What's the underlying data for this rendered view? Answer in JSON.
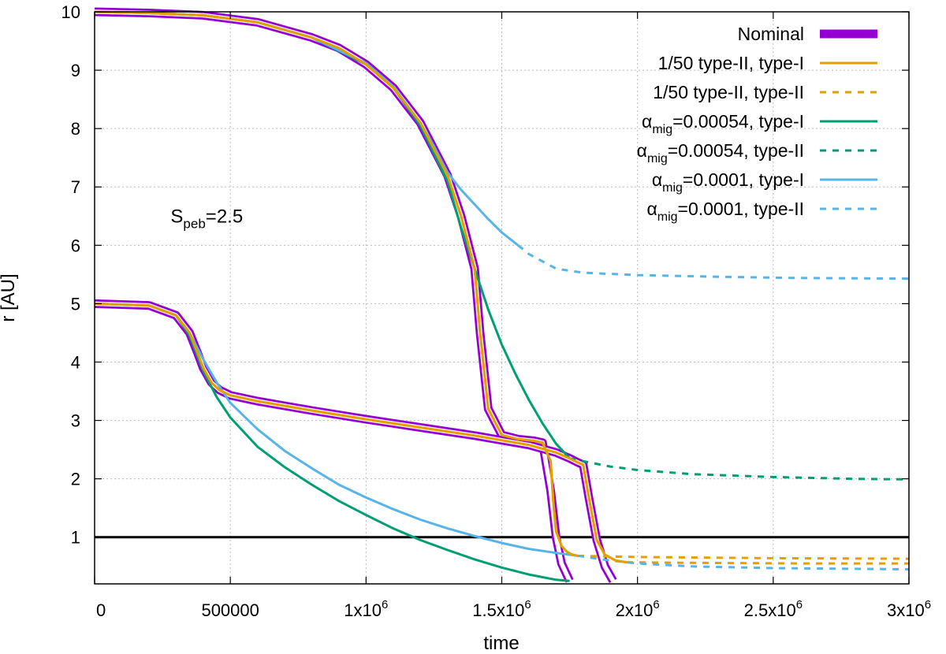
{
  "chart_data": {
    "type": "line",
    "xlabel": "time",
    "ylabel": "r [AU]",
    "xlim": [
      0,
      3000000
    ],
    "ylim": [
      0.2,
      10
    ],
    "grid": true,
    "legend_position": "top-right",
    "x_ticks": [
      {
        "value": 0,
        "label": "0"
      },
      {
        "value": 500000,
        "label": "500000"
      },
      {
        "value": 1000000,
        "label": "1x10",
        "exp": "6"
      },
      {
        "value": 1500000,
        "label": "1.5x10",
        "exp": "6"
      },
      {
        "value": 2000000,
        "label": "2x10",
        "exp": "6"
      },
      {
        "value": 2500000,
        "label": "2.5x10",
        "exp": "6"
      },
      {
        "value": 3000000,
        "label": "3x10",
        "exp": "6"
      }
    ],
    "y_ticks": [
      {
        "value": 1,
        "label": "1"
      },
      {
        "value": 2,
        "label": "2"
      },
      {
        "value": 3,
        "label": "3"
      },
      {
        "value": 4,
        "label": "4"
      },
      {
        "value": 5,
        "label": "5"
      },
      {
        "value": 6,
        "label": "6"
      },
      {
        "value": 7,
        "label": "7"
      },
      {
        "value": 8,
        "label": "8"
      },
      {
        "value": 9,
        "label": "9"
      },
      {
        "value": 10,
        "label": "10"
      }
    ],
    "annotation": {
      "base": "S",
      "sub": "peb",
      "rest": "=2.5",
      "x": 280000,
      "y": 6.5
    },
    "reference_line": {
      "name": "r = 1 AU",
      "y": 1,
      "color": "#000000"
    },
    "legend": [
      {
        "label": "Nominal",
        "color": "#9400d3",
        "style": "thick"
      },
      {
        "label": "1/50 type-II, type-I",
        "color": "#e69f00",
        "style": "solid"
      },
      {
        "label": "1/50 type-II, type-II",
        "color": "#e69f00",
        "style": "dashed"
      },
      {
        "label_base": "α",
        "label_sub": "mig",
        "label_rest": "=0.00054, type-I",
        "color": "#009e73",
        "style": "solid"
      },
      {
        "label_base": "α",
        "label_sub": "mig",
        "label_rest": "=0.00054, type-II",
        "color": "#009e73",
        "style": "dashed"
      },
      {
        "label_base": "α",
        "label_sub": "mig",
        "label_rest": "=0.0001, type-I",
        "color": "#56b4e9",
        "style": "solid"
      },
      {
        "label_base": "α",
        "label_sub": "mig",
        "label_rest": "=0.0001, type-II",
        "color": "#56b4e9",
        "style": "dashed"
      }
    ],
    "series": [
      {
        "name": "Nominal (r0=10 AU)",
        "color": "#9400d3",
        "style": "nominal",
        "x": [
          0,
          200000,
          400000,
          600000,
          800000,
          900000,
          1000000,
          1100000,
          1200000,
          1300000,
          1350000,
          1400000,
          1420000,
          1450000,
          1500000,
          1560000,
          1620000,
          1650000,
          1680000,
          1700000,
          1720000,
          1750000
        ],
        "y": [
          10,
          9.98,
          9.94,
          9.82,
          9.56,
          9.38,
          9.1,
          8.7,
          8.1,
          7.2,
          6.5,
          5.6,
          4.5,
          3.2,
          2.75,
          2.68,
          2.65,
          2.62,
          1.8,
          1,
          0.55,
          0.25
        ]
      },
      {
        "name": "Nominal (r0=5 AU)",
        "color": "#9400d3",
        "style": "nominal",
        "x": [
          0,
          200000,
          300000,
          350000,
          380000,
          400000,
          430000,
          460000,
          500000,
          600000,
          800000,
          1000000,
          1200000,
          1400000,
          1600000,
          1700000,
          1750000,
          1780000,
          1800000,
          1820000,
          1850000,
          1880000,
          1910000
        ],
        "y": [
          5,
          4.97,
          4.8,
          4.5,
          4.15,
          3.9,
          3.65,
          3.52,
          3.43,
          3.33,
          3.17,
          3.02,
          2.88,
          2.74,
          2.58,
          2.45,
          2.35,
          2.28,
          2.24,
          1.7,
          0.95,
          0.5,
          0.25
        ]
      },
      {
        "name": "1/50 type-II, type-I (r0=10 AU)",
        "color": "#e69f00",
        "style": "solid",
        "x": [
          0,
          200000,
          400000,
          600000,
          800000,
          900000,
          1000000,
          1100000,
          1200000,
          1300000,
          1350000,
          1400000,
          1420000,
          1450000,
          1500000,
          1560000,
          1620000,
          1650000,
          1680000,
          1690000,
          1700000,
          1720000,
          1740000,
          1760000,
          1780000
        ],
        "y": [
          10,
          9.98,
          9.94,
          9.82,
          9.56,
          9.38,
          9.1,
          8.7,
          8.1,
          7.2,
          6.5,
          5.6,
          4.5,
          3.2,
          2.75,
          2.68,
          2.65,
          2.62,
          2.3,
          1.6,
          1.1,
          0.85,
          0.75,
          0.7,
          0.68
        ]
      },
      {
        "name": "1/50 type-II, type-II (r0=10 AU)",
        "color": "#e69f00",
        "style": "dashed",
        "x": [
          1780000,
          2000000,
          2500000,
          3000000
        ],
        "y": [
          0.68,
          0.66,
          0.64,
          0.63
        ]
      },
      {
        "name": "1/50 type-II, type-I (r0=5 AU)",
        "color": "#e69f00",
        "style": "solid",
        "x": [
          0,
          200000,
          300000,
          350000,
          380000,
          400000,
          430000,
          460000,
          500000,
          600000,
          800000,
          1000000,
          1200000,
          1400000,
          1600000,
          1700000,
          1750000,
          1780000,
          1800000,
          1820000,
          1850000,
          1880000,
          1920000,
          1960000
        ],
        "y": [
          5,
          4.97,
          4.8,
          4.5,
          4.15,
          3.9,
          3.65,
          3.52,
          3.43,
          3.33,
          3.17,
          3.02,
          2.88,
          2.74,
          2.58,
          2.45,
          2.35,
          2.28,
          2.24,
          1.7,
          0.95,
          0.7,
          0.6,
          0.57
        ]
      },
      {
        "name": "1/50 type-II, type-II (r0=5 AU)",
        "color": "#e69f00",
        "style": "dashed",
        "x": [
          1960000,
          2200000,
          2600000,
          3000000
        ],
        "y": [
          0.57,
          0.56,
          0.55,
          0.55
        ]
      },
      {
        "name": "α_mig=0.00054, type-I (r0=10 AU)",
        "color": "#009e73",
        "style": "solid",
        "x": [
          0,
          200000,
          400000,
          600000,
          800000,
          1000000,
          1100000,
          1200000,
          1300000,
          1350000,
          1400000,
          1450000,
          1500000,
          1550000,
          1600000,
          1650000,
          1700000,
          1750000
        ],
        "y": [
          10,
          9.98,
          9.94,
          9.82,
          9.56,
          9.1,
          8.7,
          8.05,
          7.1,
          6.3,
          5.6,
          4.9,
          4.3,
          3.8,
          3.35,
          2.95,
          2.6,
          2.35
        ]
      },
      {
        "name": "α_mig=0.00054, type-II (r0=10 AU)",
        "color": "#009e73",
        "style": "dashed",
        "x": [
          1750000,
          1800000,
          1900000,
          2000000,
          2200000,
          2500000,
          2800000,
          3000000
        ],
        "y": [
          2.35,
          2.3,
          2.21,
          2.15,
          2.08,
          2.03,
          2.0,
          1.99
        ]
      },
      {
        "name": "α_mig=0.00054, type-I (r0=5 AU)",
        "color": "#009e73",
        "style": "solid",
        "x": [
          0,
          200000,
          300000,
          350000,
          400000,
          450000,
          500000,
          600000,
          700000,
          800000,
          900000,
          1000000,
          1100000,
          1200000,
          1300000,
          1400000,
          1500000,
          1600000,
          1700000,
          1750000
        ],
        "y": [
          5,
          4.97,
          4.8,
          4.45,
          3.85,
          3.4,
          3.05,
          2.55,
          2.2,
          1.9,
          1.62,
          1.38,
          1.15,
          0.95,
          0.78,
          0.62,
          0.48,
          0.36,
          0.27,
          0.25
        ]
      },
      {
        "name": "α_mig=0.0001, type-I (r0=10 AU)",
        "color": "#56b4e9",
        "style": "solid",
        "x": [
          0,
          200000,
          400000,
          600000,
          800000,
          1000000,
          1100000,
          1200000,
          1250000,
          1300000,
          1350000,
          1400000,
          1450000,
          1500000,
          1560000
        ],
        "y": [
          10,
          9.98,
          9.94,
          9.82,
          9.56,
          9.12,
          8.72,
          8.1,
          7.7,
          7.25,
          6.95,
          6.7,
          6.45,
          6.22,
          6.0
        ]
      },
      {
        "name": "α_mig=0.0001, type-II (r0=10 AU)",
        "color": "#56b4e9",
        "style": "dashed",
        "x": [
          1560000,
          1600000,
          1700000,
          1800000,
          2000000,
          2300000,
          2600000,
          3000000
        ],
        "y": [
          6.0,
          5.85,
          5.6,
          5.53,
          5.49,
          5.46,
          5.44,
          5.43
        ]
      },
      {
        "name": "α_mig=0.0001, type-I (r0=5 AU)",
        "color": "#56b4e9",
        "style": "solid",
        "x": [
          0,
          200000,
          300000,
          350000,
          400000,
          450000,
          500000,
          600000,
          700000,
          800000,
          900000,
          1000000,
          1100000,
          1200000,
          1300000,
          1400000,
          1500000,
          1600000,
          1700000,
          1780000
        ],
        "y": [
          5,
          4.97,
          4.8,
          4.5,
          4.05,
          3.65,
          3.3,
          2.85,
          2.48,
          2.18,
          1.9,
          1.68,
          1.48,
          1.3,
          1.15,
          1.02,
          0.9,
          0.8,
          0.73,
          0.68
        ]
      },
      {
        "name": "α_mig=0.0001, type-II (r0=5 AU)",
        "color": "#56b4e9",
        "style": "dashed",
        "x": [
          1780000,
          1900000,
          2000000,
          2200000,
          2500000,
          3000000
        ],
        "y": [
          0.68,
          0.6,
          0.55,
          0.5,
          0.47,
          0.45
        ]
      }
    ]
  }
}
